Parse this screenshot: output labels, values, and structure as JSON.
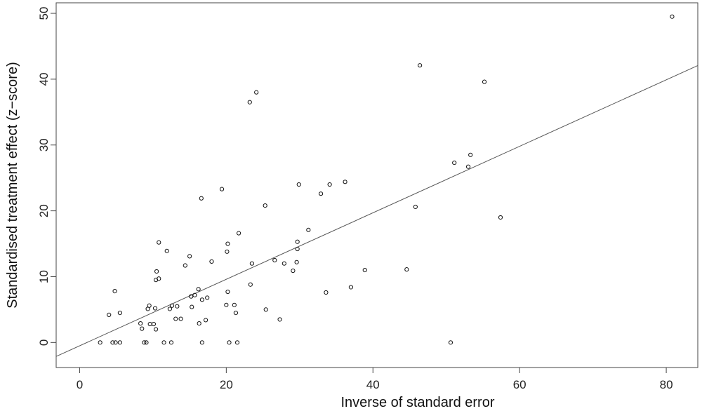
{
  "chart_data": {
    "type": "scatter",
    "title": "",
    "xlabel": "Inverse of standard error",
    "ylabel": "Standardised treatment effect (z−score)",
    "xlim": [
      -3.2,
      84.3
    ],
    "ylim": [
      -3.8,
      51.6
    ],
    "xticks": [
      0,
      20,
      40,
      60,
      80
    ],
    "yticks": [
      0,
      10,
      20,
      30,
      40,
      50
    ],
    "grid": false,
    "legend": "none",
    "regression_line": {
      "intercept": -0.5,
      "slope": 0.505
    },
    "points": [
      {
        "x": 2.8,
        "y": 0.0
      },
      {
        "x": 4.0,
        "y": 4.2
      },
      {
        "x": 4.5,
        "y": 0.0
      },
      {
        "x": 4.9,
        "y": 0.0
      },
      {
        "x": 4.8,
        "y": 7.8
      },
      {
        "x": 5.5,
        "y": 0.0
      },
      {
        "x": 5.5,
        "y": 4.5
      },
      {
        "x": 8.3,
        "y": 2.9
      },
      {
        "x": 8.5,
        "y": 2.1
      },
      {
        "x": 8.8,
        "y": 0.0
      },
      {
        "x": 9.1,
        "y": 0.0
      },
      {
        "x": 9.3,
        "y": 5.1
      },
      {
        "x": 9.5,
        "y": 5.6
      },
      {
        "x": 9.6,
        "y": 2.8
      },
      {
        "x": 10.1,
        "y": 2.8
      },
      {
        "x": 10.3,
        "y": 5.2
      },
      {
        "x": 10.4,
        "y": 9.5
      },
      {
        "x": 10.4,
        "y": 2.0
      },
      {
        "x": 10.5,
        "y": 10.8
      },
      {
        "x": 10.8,
        "y": 9.7
      },
      {
        "x": 10.8,
        "y": 15.2
      },
      {
        "x": 11.5,
        "y": 0.0
      },
      {
        "x": 11.9,
        "y": 13.9
      },
      {
        "x": 12.3,
        "y": 5.1
      },
      {
        "x": 12.5,
        "y": 0.0
      },
      {
        "x": 12.6,
        "y": 5.6
      },
      {
        "x": 13.1,
        "y": 3.6
      },
      {
        "x": 13.3,
        "y": 5.5
      },
      {
        "x": 13.8,
        "y": 3.6
      },
      {
        "x": 14.4,
        "y": 11.7
      },
      {
        "x": 15.0,
        "y": 13.1
      },
      {
        "x": 15.2,
        "y": 7.0
      },
      {
        "x": 15.3,
        "y": 5.4
      },
      {
        "x": 15.7,
        "y": 7.2
      },
      {
        "x": 16.2,
        "y": 8.1
      },
      {
        "x": 16.3,
        "y": 2.9
      },
      {
        "x": 16.6,
        "y": 21.9
      },
      {
        "x": 16.7,
        "y": 6.5
      },
      {
        "x": 16.7,
        "y": 0.0
      },
      {
        "x": 17.2,
        "y": 3.4
      },
      {
        "x": 17.4,
        "y": 6.8
      },
      {
        "x": 18.0,
        "y": 12.3
      },
      {
        "x": 19.4,
        "y": 23.3
      },
      {
        "x": 20.0,
        "y": 5.7
      },
      {
        "x": 20.1,
        "y": 13.8
      },
      {
        "x": 20.2,
        "y": 15.0
      },
      {
        "x": 20.2,
        "y": 7.7
      },
      {
        "x": 20.4,
        "y": 0.0
      },
      {
        "x": 21.1,
        "y": 5.7
      },
      {
        "x": 21.3,
        "y": 4.5
      },
      {
        "x": 21.5,
        "y": 0.0
      },
      {
        "x": 21.7,
        "y": 16.6
      },
      {
        "x": 23.2,
        "y": 36.5
      },
      {
        "x": 23.3,
        "y": 8.8
      },
      {
        "x": 23.5,
        "y": 12.0
      },
      {
        "x": 24.1,
        "y": 38.0
      },
      {
        "x": 25.3,
        "y": 20.8
      },
      {
        "x": 25.4,
        "y": 5.0
      },
      {
        "x": 26.6,
        "y": 12.5
      },
      {
        "x": 27.3,
        "y": 3.5
      },
      {
        "x": 27.9,
        "y": 12.0
      },
      {
        "x": 29.1,
        "y": 10.9
      },
      {
        "x": 29.6,
        "y": 12.2
      },
      {
        "x": 29.7,
        "y": 15.3
      },
      {
        "x": 29.7,
        "y": 14.2
      },
      {
        "x": 29.9,
        "y": 24.0
      },
      {
        "x": 31.2,
        "y": 17.1
      },
      {
        "x": 32.9,
        "y": 22.6
      },
      {
        "x": 33.6,
        "y": 7.6
      },
      {
        "x": 34.1,
        "y": 24.0
      },
      {
        "x": 36.2,
        "y": 24.4
      },
      {
        "x": 37.0,
        "y": 8.4
      },
      {
        "x": 38.9,
        "y": 11.0
      },
      {
        "x": 44.6,
        "y": 11.1
      },
      {
        "x": 45.8,
        "y": 20.6
      },
      {
        "x": 46.4,
        "y": 42.1
      },
      {
        "x": 50.6,
        "y": 0.0
      },
      {
        "x": 51.1,
        "y": 27.3
      },
      {
        "x": 53.0,
        "y": 26.7
      },
      {
        "x": 53.3,
        "y": 28.5
      },
      {
        "x": 55.2,
        "y": 39.6
      },
      {
        "x": 57.4,
        "y": 19.0
      },
      {
        "x": 80.8,
        "y": 49.5
      }
    ]
  }
}
